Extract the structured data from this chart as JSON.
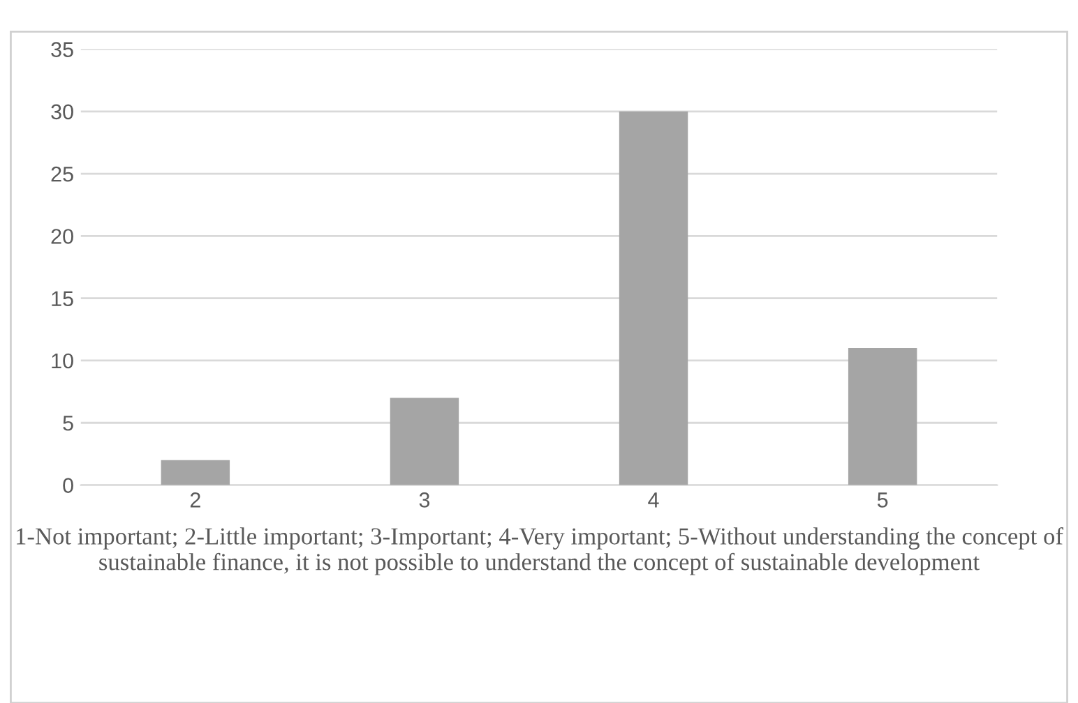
{
  "chart_data": {
    "type": "bar",
    "categories": [
      "2",
      "3",
      "4",
      "5"
    ],
    "values": [
      2,
      7,
      30,
      11
    ],
    "color": "#a5a5a5",
    "ylim": [
      0,
      35
    ],
    "yticks": [
      0,
      5,
      10,
      15,
      20,
      25,
      30,
      35
    ],
    "grid": "y",
    "xlabel": "1-Not important; 2-Little important; 3-Important; 4-Very important; 5-Without understanding the concept of sustainable finance, it is not possible to understand the concept of sustainable development"
  }
}
